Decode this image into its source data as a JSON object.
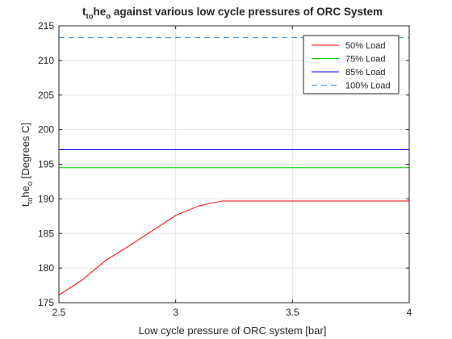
{
  "chart_data": {
    "type": "line",
    "title": {
      "parts": [
        {
          "text": "t",
          "sub": false
        },
        {
          "text": "to",
          "sub": true
        },
        {
          "text": "he",
          "sub": false
        },
        {
          "text": "o",
          "sub": true
        },
        {
          "text": " against various low cycle pressures of ORC System",
          "sub": false
        }
      ]
    },
    "xlabel": "Low cycle pressure of ORC system [bar]",
    "ylabel": {
      "parts": [
        {
          "text": "t",
          "sub": false
        },
        {
          "text": "to",
          "sub": true
        },
        {
          "text": "he",
          "sub": false
        },
        {
          "text": "o",
          "sub": true
        },
        {
          "text": " [Degrees C]",
          "sub": false
        }
      ]
    },
    "xlim": [
      2.5,
      4
    ],
    "ylim": [
      175,
      215
    ],
    "x_ticks": [
      "2.5",
      "3",
      "3.5",
      "4"
    ],
    "x_tick_values": [
      2.5,
      3,
      3.5,
      4
    ],
    "y_ticks": [
      "175",
      "180",
      "185",
      "190",
      "195",
      "200",
      "205",
      "210",
      "215"
    ],
    "y_tick_values": [
      175,
      180,
      185,
      190,
      195,
      200,
      205,
      210,
      215
    ],
    "grid": true,
    "legend_position": "top-right",
    "series": [
      {
        "name": "50% Load",
        "color": "#ff0000",
        "dash": "solid",
        "x": [
          2.5,
          2.6,
          2.7,
          2.8,
          2.9,
          3.0,
          3.1,
          3.2,
          3.3,
          3.4,
          3.5,
          3.6,
          3.7,
          3.8,
          3.9,
          4.0
        ],
        "y": [
          176.1,
          178.3,
          181.1,
          183.2,
          185.4,
          187.6,
          189.0,
          189.7,
          189.7,
          189.7,
          189.7,
          189.7,
          189.7,
          189.7,
          189.7,
          189.7
        ]
      },
      {
        "name": "75% Load",
        "color": "#00cc00",
        "dash": "solid",
        "x": [
          2.5,
          4.0
        ],
        "y": [
          194.5,
          194.5
        ]
      },
      {
        "name": "85% Load",
        "color": "#0000ff",
        "dash": "solid",
        "x": [
          2.5,
          4.0
        ],
        "y": [
          197.1,
          197.1
        ]
      },
      {
        "name": "100% Load",
        "color": "#3a8fd9",
        "dash": "dashed",
        "x": [
          2.5,
          4.0
        ],
        "y": [
          213.3,
          213.3
        ]
      }
    ]
  }
}
